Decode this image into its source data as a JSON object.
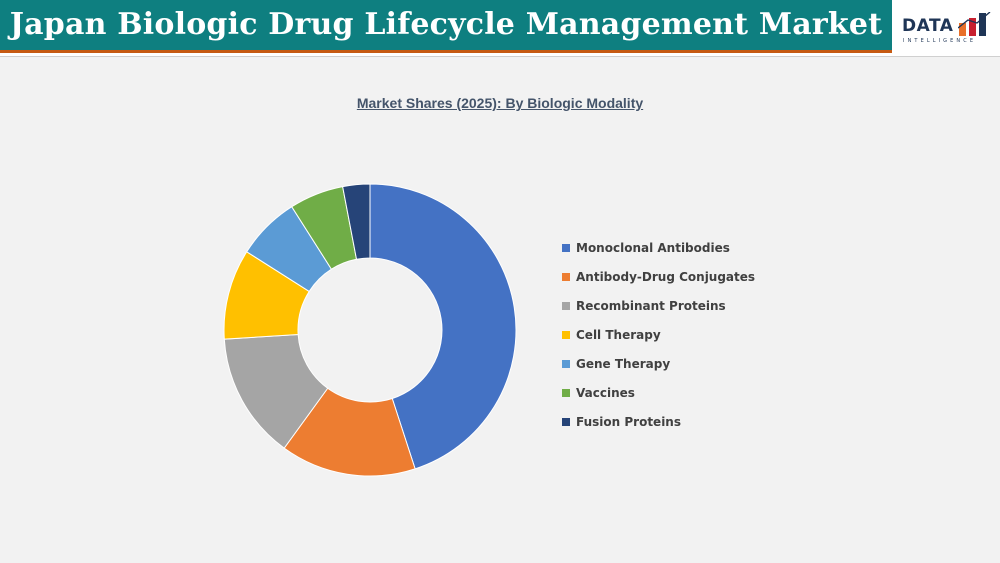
{
  "header": {
    "title": "Japan Biologic Drug Lifecycle Management Market",
    "logo_word": "DATA",
    "logo_sub": "INTELLIGENCE"
  },
  "colors": {
    "title_bar": "#0e7f80",
    "title_underline": "#c65a12",
    "background": "#f2f2f2"
  },
  "chart_data": {
    "type": "pie",
    "variant": "donut",
    "title": "Market Shares (2025): By Biologic Modality",
    "legend_position": "right",
    "categories": [
      "Monoclonal Antibodies",
      "Antibody-Drug Conjugates",
      "Recombinant Proteins",
      "Cell Therapy",
      "Gene Therapy",
      "Vaccines",
      "Fusion Proteins"
    ],
    "values": [
      45,
      15,
      14,
      10,
      7,
      6,
      3
    ],
    "colors": [
      "#4472c4",
      "#ed7d31",
      "#a5a5a5",
      "#ffc000",
      "#5b9bd5",
      "#70ad47",
      "#264478"
    ]
  }
}
